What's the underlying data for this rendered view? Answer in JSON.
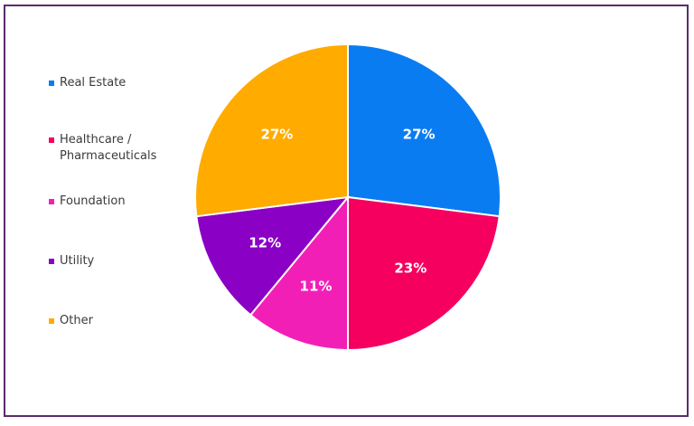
{
  "chart_data": {
    "type": "pie",
    "categories": [
      "Real Estate",
      "Healthcare /\nPharmaceuticals",
      "Foundation",
      "Utility",
      "Other"
    ],
    "values": [
      27,
      23,
      11,
      12,
      27
    ],
    "labels": [
      "27%",
      "23%",
      "11%",
      "12%",
      "27%"
    ],
    "colors": [
      "#0a7cf2",
      "#f5005e",
      "#f21fb7",
      "#8a00c4",
      "#ffab00"
    ],
    "legend_position": "left",
    "start_angle_deg": 0,
    "direction": "clockwise"
  }
}
